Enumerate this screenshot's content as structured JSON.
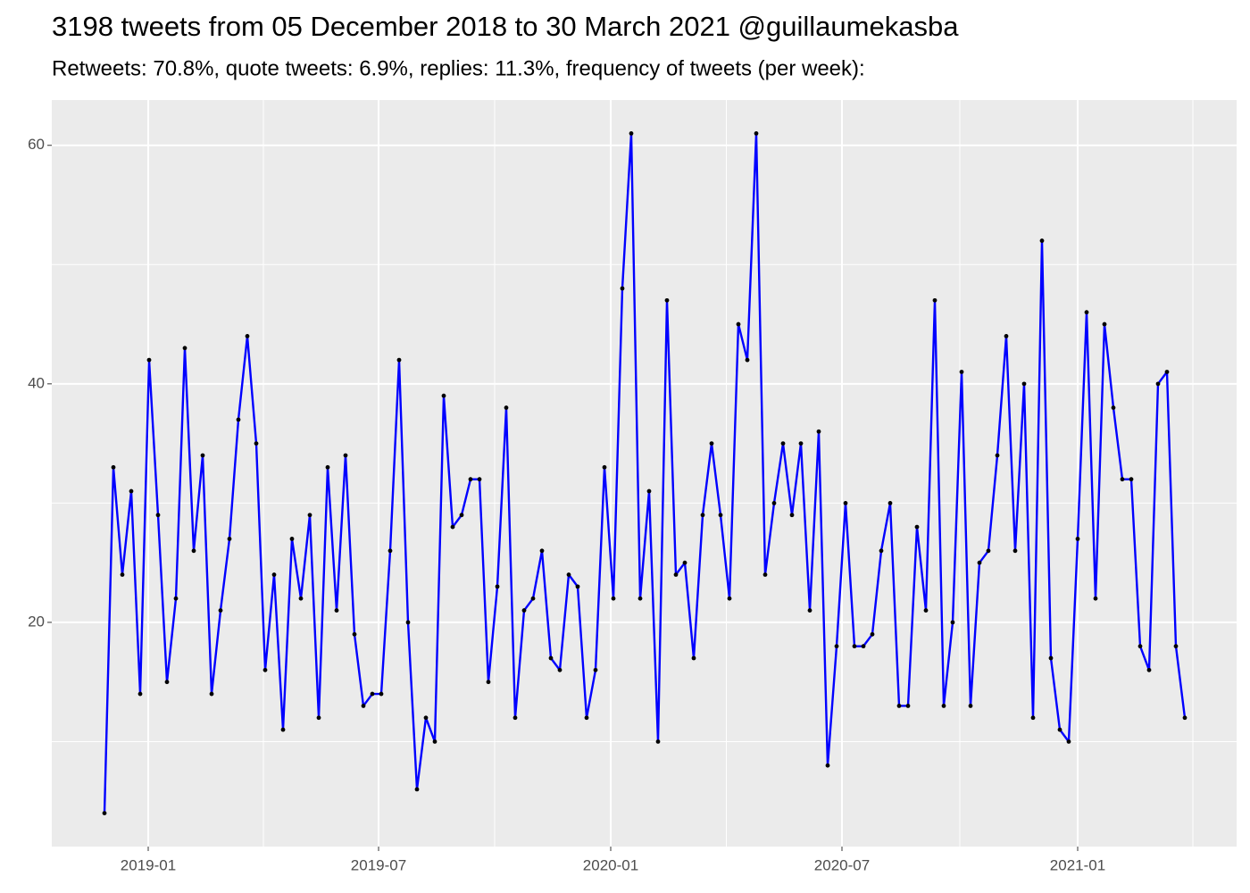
{
  "chart_data": {
    "type": "line",
    "title": "3198 tweets from 05 December 2018 to 30 March 2021 @guillaumekasba",
    "subtitle": "Retweets: 70.8%, quote tweets: 6.9%, replies: 11.3%, frequency of tweets (per week):",
    "series": [
      {
        "color": "#0000ff",
        "point_color": "#000000",
        "values": [
          4,
          33,
          24,
          31,
          14,
          42,
          29,
          15,
          22,
          43,
          26,
          34,
          14,
          21,
          27,
          37,
          44,
          35,
          16,
          24,
          11,
          27,
          22,
          29,
          12,
          33,
          21,
          34,
          19,
          13,
          14,
          14,
          26,
          42,
          20,
          6,
          12,
          10,
          39,
          28,
          29,
          32,
          32,
          15,
          23,
          38,
          12,
          21,
          22,
          26,
          17,
          16,
          24,
          23,
          12,
          16,
          33,
          22,
          48,
          61,
          22,
          31,
          10,
          47,
          24,
          25,
          17,
          29,
          35,
          29,
          22,
          45,
          42,
          61,
          24,
          30,
          35,
          29,
          35,
          21,
          36,
          8,
          18,
          30,
          18,
          18,
          19,
          26,
          30,
          13,
          13,
          28,
          21,
          47,
          13,
          20,
          41,
          13,
          25,
          26,
          34,
          44,
          26,
          40,
          12,
          52,
          17,
          11,
          10,
          27,
          46,
          22,
          45,
          38,
          32,
          32,
          18,
          16,
          40,
          41,
          18,
          12
        ]
      }
    ],
    "xlim": [
      -5.9,
      126.8
    ],
    "xticks": [
      {
        "value": 4.9,
        "label": "2019-01"
      },
      {
        "value": 30.7,
        "label": "2019-07"
      },
      {
        "value": 56.7,
        "label": "2020-01"
      },
      {
        "value": 82.6,
        "label": "2020-07"
      },
      {
        "value": 109.0,
        "label": "2021-01"
      }
    ],
    "ylim": [
      1.2,
      63.8
    ],
    "yticks": [
      20,
      40,
      60
    ],
    "grid": true
  }
}
